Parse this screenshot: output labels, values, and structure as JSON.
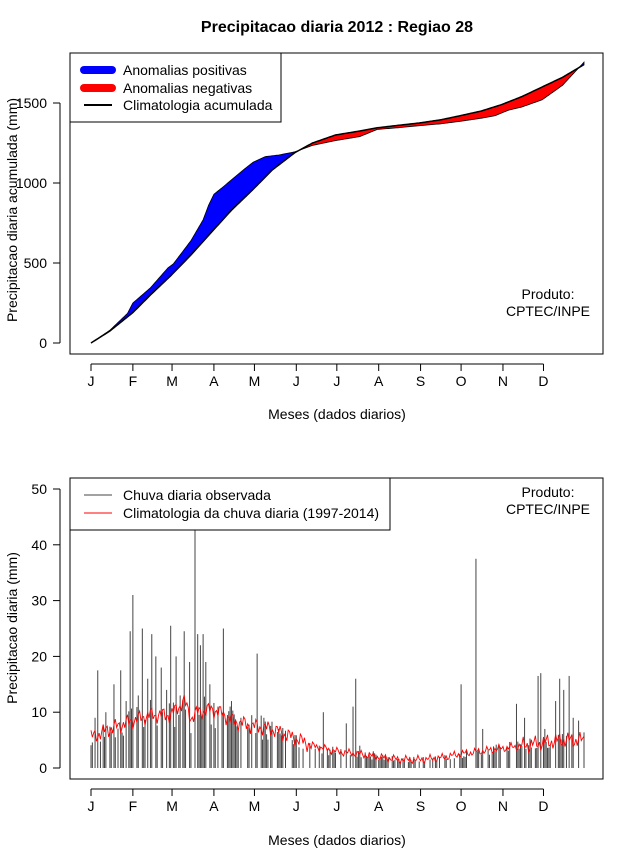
{
  "title": "Precipitacao diaria 2012 : Regiao 28",
  "colors": {
    "positive": "#0000ff",
    "negative": "#ff0000",
    "line": "#000000",
    "bars": "#444444",
    "clim": "#ff0000"
  },
  "chart_data": [
    {
      "type": "area",
      "ylabel": "Precipitacao diaria acumulada (mm)",
      "xlabel": "Meses (dados diarios)",
      "x_tick_labels": [
        "J",
        "F",
        "M",
        "A",
        "M",
        "J",
        "J",
        "A",
        "S",
        "O",
        "N",
        "D"
      ],
      "y_ticks": [
        0,
        500,
        1000,
        1500
      ],
      "xlim": [
        1,
        366
      ],
      "ylim": [
        0,
        1750
      ],
      "legend": [
        "Anomalias positivas",
        "Anomalias negativas",
        "Climatologia acumulada"
      ],
      "legend_position": "top-left",
      "annotation": [
        "Produto:",
        "CPTEC/INPE"
      ],
      "climatology_day": [
        1,
        15,
        32,
        45,
        60,
        75,
        91,
        105,
        121,
        135,
        152,
        165,
        182,
        200,
        213,
        228,
        244,
        260,
        274,
        290,
        305,
        320,
        335,
        350,
        366
      ],
      "climatology_mm": [
        0,
        75,
        190,
        300,
        420,
        550,
        700,
        830,
        960,
        1080,
        1190,
        1250,
        1300,
        1325,
        1345,
        1360,
        1375,
        1395,
        1420,
        1450,
        1490,
        1540,
        1600,
        1660,
        1740
      ],
      "observed_day": [
        1,
        15,
        28,
        32,
        45,
        58,
        62,
        75,
        84,
        88,
        92,
        98,
        105,
        115,
        121,
        130,
        140,
        152,
        165,
        182,
        200,
        213,
        228,
        240,
        260,
        274,
        290,
        300,
        310,
        320,
        335,
        350,
        366
      ],
      "observed_mm": [
        0,
        80,
        185,
        250,
        345,
        470,
        495,
        640,
        770,
        860,
        930,
        970,
        1020,
        1090,
        1130,
        1165,
        1175,
        1195,
        1235,
        1265,
        1290,
        1335,
        1345,
        1355,
        1370,
        1385,
        1405,
        1420,
        1455,
        1475,
        1520,
        1610,
        1755
      ]
    },
    {
      "type": "bar",
      "ylabel": "Precipitacao diaria (mm)",
      "xlabel": "Meses (dados diarios)",
      "x_tick_labels": [
        "J",
        "F",
        "M",
        "A",
        "M",
        "J",
        "J",
        "A",
        "S",
        "O",
        "N",
        "D"
      ],
      "y_ticks": [
        0,
        10,
        20,
        30,
        40,
        50
      ],
      "xlim": [
        1,
        366
      ],
      "ylim": [
        0,
        50
      ],
      "legend": [
        "Chuva diaria observada",
        "Climatologia da chuva diaria (1997-2014)"
      ],
      "legend_position": "top-left",
      "annotation": [
        "Produto:",
        "CPTEC/INPE"
      ],
      "notable_bars": [
        {
          "day": 4,
          "value": 9
        },
        {
          "day": 6,
          "value": 17.5
        },
        {
          "day": 12,
          "value": 10
        },
        {
          "day": 18,
          "value": 15
        },
        {
          "day": 23,
          "value": 17.5
        },
        {
          "day": 27,
          "value": 12
        },
        {
          "day": 30,
          "value": 24.5
        },
        {
          "day": 32,
          "value": 31
        },
        {
          "day": 36,
          "value": 13
        },
        {
          "day": 39,
          "value": 25
        },
        {
          "day": 43,
          "value": 16
        },
        {
          "day": 46,
          "value": 24
        },
        {
          "day": 49,
          "value": 20
        },
        {
          "day": 53,
          "value": 18
        },
        {
          "day": 57,
          "value": 14
        },
        {
          "day": 60,
          "value": 25.5
        },
        {
          "day": 64,
          "value": 20
        },
        {
          "day": 67,
          "value": 13
        },
        {
          "day": 70,
          "value": 24.5
        },
        {
          "day": 74,
          "value": 19
        },
        {
          "day": 78,
          "value": 43
        },
        {
          "day": 80,
          "value": 24
        },
        {
          "day": 82,
          "value": 22
        },
        {
          "day": 84,
          "value": 24
        },
        {
          "day": 86,
          "value": 19
        },
        {
          "day": 89,
          "value": 15
        },
        {
          "day": 95,
          "value": 11
        },
        {
          "day": 99,
          "value": 25
        },
        {
          "day": 105,
          "value": 12
        },
        {
          "day": 112,
          "value": 9
        },
        {
          "day": 124,
          "value": 20.5
        },
        {
          "day": 129,
          "value": 9
        },
        {
          "day": 140,
          "value": 7
        },
        {
          "day": 150,
          "value": 5
        },
        {
          "day": 170,
          "value": 4
        },
        {
          "day": 173,
          "value": 10
        },
        {
          "day": 190,
          "value": 8
        },
        {
          "day": 195,
          "value": 11
        },
        {
          "day": 197,
          "value": 16
        },
        {
          "day": 200,
          "value": 4
        },
        {
          "day": 210,
          "value": 3
        },
        {
          "day": 240,
          "value": 2
        },
        {
          "day": 275,
          "value": 15
        },
        {
          "day": 278,
          "value": 2
        },
        {
          "day": 286,
          "value": 37.5
        },
        {
          "day": 291,
          "value": 7
        },
        {
          "day": 300,
          "value": 3
        },
        {
          "day": 316,
          "value": 11.5
        },
        {
          "day": 322,
          "value": 9
        },
        {
          "day": 332,
          "value": 16.5
        },
        {
          "day": 334,
          "value": 17
        },
        {
          "day": 337,
          "value": 7
        },
        {
          "day": 345,
          "value": 12
        },
        {
          "day": 348,
          "value": 16
        },
        {
          "day": 351,
          "value": 14
        },
        {
          "day": 355,
          "value": 16.5
        },
        {
          "day": 358,
          "value": 9
        },
        {
          "day": 362,
          "value": 8.5
        }
      ],
      "climatology_daily_day": [
        1,
        15,
        32,
        45,
        60,
        70,
        75,
        80,
        91,
        100,
        105,
        121,
        135,
        150,
        165,
        182,
        200,
        213,
        230,
        244,
        260,
        274,
        290,
        305,
        320,
        335,
        350,
        366
      ],
      "climatology_daily_mm": [
        5.5,
        7,
        8.5,
        9.5,
        9.5,
        12,
        9,
        10,
        10.5,
        9.5,
        8.5,
        7.5,
        7,
        5.5,
        4,
        3,
        2.5,
        2,
        1.5,
        1.5,
        1.8,
        2.5,
        3,
        3.5,
        4,
        4.5,
        5,
        5
      ]
    }
  ]
}
